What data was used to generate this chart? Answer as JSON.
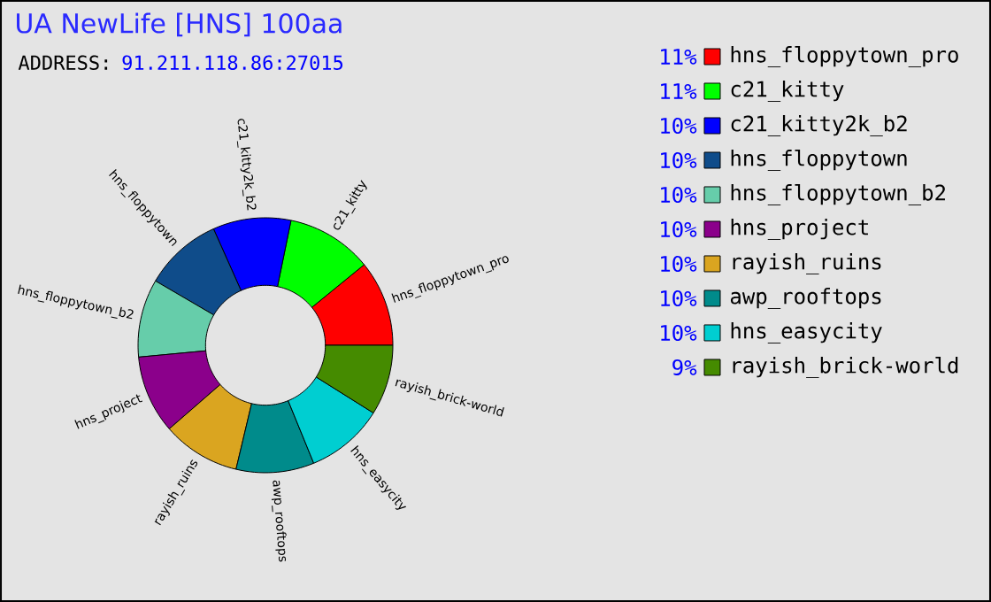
{
  "chart_data": {
    "type": "donut",
    "title": "UA NewLife [HNS] 100aa",
    "subtitle": "ADDRESS:",
    "annotations": [
      "91.211.118.86:27015"
    ],
    "categories": [
      "hns_floppytown_pro",
      "c21_kitty",
      "c21_kitty2k_b2",
      "hns_floppytown",
      "hns_floppytown_b2",
      "hns_project",
      "rayish_ruins",
      "awp_rooftops",
      "hns_easycity",
      "rayish_brick-world"
    ],
    "values": [
      11,
      11,
      10,
      10,
      10,
      10,
      10,
      10,
      10,
      9
    ],
    "value_labels": [
      "11%",
      "11%",
      "10%",
      "10%",
      "10%",
      "10%",
      "10%",
      "10%",
      "10%",
      "9%"
    ],
    "colors": [
      "#ff0000",
      "#00ff00",
      "#0000ff",
      "#0f4c8a",
      "#66cdaa",
      "#8b008b",
      "#daa520",
      "#008b8b",
      "#00ced1",
      "#458b00"
    ],
    "legend": "right"
  }
}
